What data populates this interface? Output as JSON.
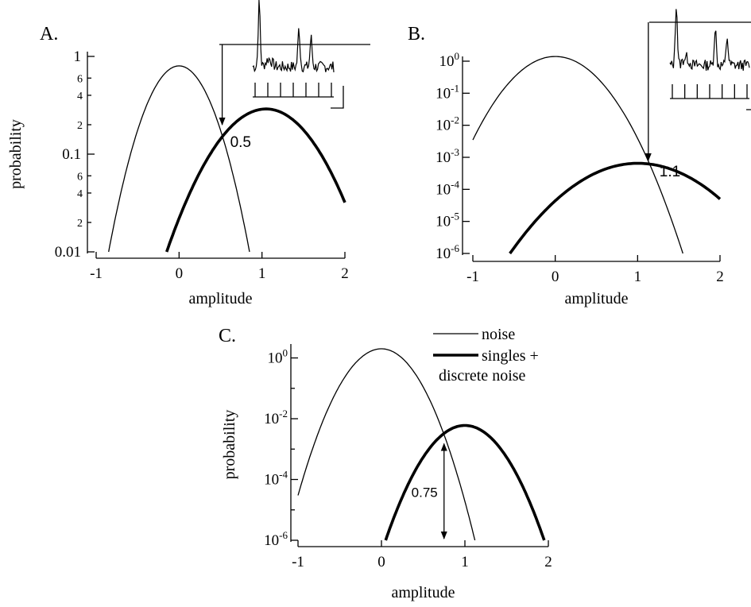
{
  "legend": {
    "noise": "noise",
    "singles_line1": "singles +",
    "singles_line2": "discrete noise"
  },
  "colors": {
    "ink": "#000000",
    "background": "#ffffff"
  },
  "chart_data": [
    {
      "id": "A",
      "panel_label": "A.",
      "type": "line",
      "xlabel": "amplitude",
      "ylabel": "probability",
      "y_scale": "log",
      "xlim": [
        -1,
        2
      ],
      "ylim": [
        0.01,
        1
      ],
      "x_ticks": [
        {
          "value": -1,
          "label": "-1"
        },
        {
          "value": 0,
          "label": "0"
        },
        {
          "value": 1,
          "label": "1"
        },
        {
          "value": 2,
          "label": "2"
        }
      ],
      "y_major_ticks": [
        {
          "value": 0.01,
          "label": "0.01"
        },
        {
          "value": 0.1,
          "label": "0.1"
        },
        {
          "value": 1,
          "label": "1"
        }
      ],
      "y_minor_ticks": [
        {
          "value": 0.02,
          "label": "2"
        },
        {
          "value": 0.04,
          "label": "4"
        },
        {
          "value": 0.06,
          "label": "6"
        },
        {
          "value": 0.2,
          "label": "2"
        },
        {
          "value": 0.4,
          "label": "4"
        },
        {
          "value": 0.6,
          "label": "6"
        }
      ],
      "series": [
        {
          "style": "thin",
          "peak_x": 0.0,
          "peak_y": 0.8,
          "x": [
            -0.85,
            -0.5,
            0.0,
            0.5,
            0.85
          ],
          "y": [
            0.01,
            0.16,
            0.8,
            0.16,
            0.01
          ]
        },
        {
          "style": "thick",
          "peak_x": 1.05,
          "peak_y": 0.29,
          "x": [
            -0.15,
            0.5,
            1.05,
            1.5,
            2.0
          ],
          "y": [
            0.01,
            0.085,
            0.29,
            0.13,
            0.032
          ]
        }
      ],
      "threshold": {
        "x": 0.52,
        "label": "0.5",
        "y_top": 0.6,
        "y_bottom": 0.2
      },
      "inset": {
        "y_level": 0.6
      }
    },
    {
      "id": "B",
      "panel_label": "B.",
      "type": "line",
      "xlabel": "amplitude",
      "ylabel": "",
      "y_scale": "log",
      "xlim": [
        -1,
        2
      ],
      "ylim": [
        1e-06,
        1
      ],
      "x_ticks": [
        {
          "value": -1,
          "label": "-1"
        },
        {
          "value": 0,
          "label": "0"
        },
        {
          "value": 1,
          "label": "1"
        },
        {
          "value": 2,
          "label": "2"
        }
      ],
      "y_major_ticks": [
        {
          "value": 1e-06,
          "label": "10",
          "exp": "-6"
        },
        {
          "value": 1e-05,
          "label": "10",
          "exp": "-5"
        },
        {
          "value": 0.0001,
          "label": "10",
          "exp": "-4"
        },
        {
          "value": 0.001,
          "label": "10",
          "exp": "-3"
        },
        {
          "value": 0.01,
          "label": "10",
          "exp": "-2"
        },
        {
          "value": 0.1,
          "label": "10",
          "exp": "-1"
        },
        {
          "value": 1,
          "label": "10",
          "exp": "0"
        }
      ],
      "y_minor_ticks": [],
      "series": [
        {
          "style": "thin",
          "peak_x": 0.0,
          "peak_y": 1.4,
          "x": [
            -1.0,
            -0.5,
            0.0,
            0.5,
            1.0,
            1.55
          ],
          "y": [
            0.0035,
            0.3,
            1.4,
            0.3,
            0.0035,
            1e-06
          ]
        },
        {
          "style": "thick",
          "peak_x": 1.0,
          "peak_y": 0.00065,
          "x": [
            -0.55,
            0.0,
            0.5,
            1.0,
            1.5,
            2.0
          ],
          "y": [
            1e-06,
            5e-05,
            0.0003,
            0.00065,
            0.0003,
            5e-05
          ]
        }
      ],
      "threshold": {
        "x": 1.13,
        "label": "1.1",
        "y_top": 1.0,
        "y_bottom": 0.0008
      },
      "inset": {
        "y_level": 1.0
      }
    },
    {
      "id": "C",
      "panel_label": "C.",
      "type": "line",
      "xlabel": "amplitude",
      "ylabel": "probability",
      "y_scale": "log",
      "xlim": [
        -1,
        2
      ],
      "ylim": [
        1e-06,
        2
      ],
      "x_ticks": [
        {
          "value": -1,
          "label": "-1"
        },
        {
          "value": 0,
          "label": "0"
        },
        {
          "value": 1,
          "label": "1"
        },
        {
          "value": 2,
          "label": "2"
        }
      ],
      "y_major_ticks": [
        {
          "value": 1e-06,
          "label": "10",
          "exp": "-6"
        },
        {
          "value": 0.0001,
          "label": "10",
          "exp": "-4"
        },
        {
          "value": 0.01,
          "label": "10",
          "exp": "-2"
        },
        {
          "value": 1,
          "label": "10",
          "exp": "0"
        }
      ],
      "y_minor_ticks": [
        {
          "value": 1e-05,
          "label": ""
        },
        {
          "value": 0.001,
          "label": ""
        },
        {
          "value": 0.1,
          "label": ""
        }
      ],
      "series": [
        {
          "style": "thin",
          "peak_x": 0.0,
          "peak_y": 2.0,
          "x": [
            -1.0,
            -0.5,
            0.0,
            0.5,
            1.0,
            1.12
          ],
          "y": [
            3e-05,
            0.13,
            2.0,
            0.13,
            3e-05,
            1e-06
          ]
        },
        {
          "style": "thick",
          "peak_x": 1.0,
          "peak_y": 0.006,
          "x": [
            0.05,
            0.5,
            1.0,
            1.5,
            1.95
          ],
          "y": [
            1e-06,
            0.0006,
            0.006,
            0.0006,
            1e-06
          ]
        }
      ],
      "threshold": {
        "x": 0.75,
        "label": "0.75",
        "y_top": 0.0015,
        "y_bottom": 1e-06,
        "double_headed": true
      }
    }
  ]
}
